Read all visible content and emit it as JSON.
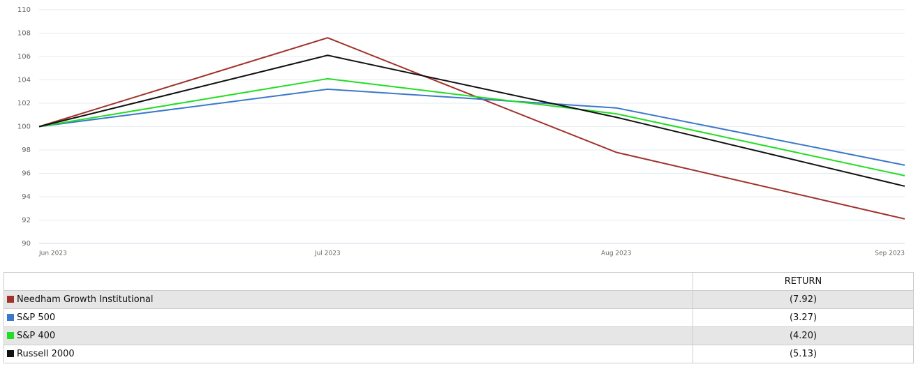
{
  "chart_data": {
    "type": "line",
    "categories": [
      "Jun 2023",
      "Jul 2023",
      "Aug 2023",
      "Sep 2023"
    ],
    "series": [
      {
        "name": "Needham Growth Institutional",
        "color": "#a0322b",
        "values": [
          100,
          107.6,
          97.8,
          92.1
        ]
      },
      {
        "name": "S&P 500",
        "color": "#3a78c9",
        "values": [
          100,
          103.2,
          101.6,
          96.7
        ]
      },
      {
        "name": "S&P 400",
        "color": "#22dd22",
        "values": [
          100,
          104.1,
          101.1,
          95.8
        ]
      },
      {
        "name": "Russell 2000",
        "color": "#111111",
        "values": [
          100,
          106.1,
          100.8,
          94.9
        ]
      }
    ],
    "ylim": [
      90,
      110
    ],
    "yticks": [
      90,
      92,
      94,
      96,
      98,
      100,
      102,
      104,
      106,
      108,
      110
    ],
    "grid": true
  },
  "table": {
    "header": "RETURN",
    "returns": [
      "(7.92)",
      "(3.27)",
      "(4.20)",
      "(5.13)"
    ]
  }
}
